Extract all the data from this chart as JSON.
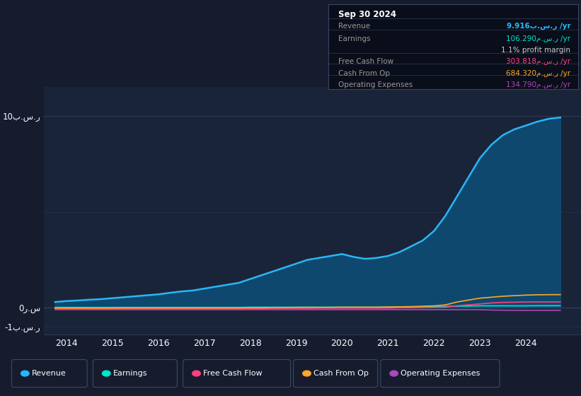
{
  "bg_color": "#161c2e",
  "plot_bg_color": "#1a2438",
  "grid_color": "#263048",
  "x_years": [
    2013.75,
    2014.0,
    2014.25,
    2014.5,
    2014.75,
    2015.0,
    2015.25,
    2015.5,
    2015.75,
    2016.0,
    2016.25,
    2016.5,
    2016.75,
    2017.0,
    2017.25,
    2017.5,
    2017.75,
    2018.0,
    2018.25,
    2018.5,
    2018.75,
    2019.0,
    2019.25,
    2019.5,
    2019.75,
    2020.0,
    2020.25,
    2020.5,
    2020.75,
    2021.0,
    2021.25,
    2021.5,
    2021.75,
    2022.0,
    2022.25,
    2022.5,
    2022.75,
    2023.0,
    2023.25,
    2023.5,
    2023.75,
    2024.0,
    2024.25,
    2024.5,
    2024.75
  ],
  "revenue": [
    0.3,
    0.35,
    0.38,
    0.42,
    0.45,
    0.5,
    0.55,
    0.6,
    0.65,
    0.7,
    0.78,
    0.85,
    0.9,
    1.0,
    1.1,
    1.2,
    1.3,
    1.5,
    1.7,
    1.9,
    2.1,
    2.3,
    2.5,
    2.6,
    2.7,
    2.8,
    2.65,
    2.55,
    2.6,
    2.7,
    2.9,
    3.2,
    3.5,
    4.0,
    4.8,
    5.8,
    6.8,
    7.8,
    8.5,
    9.0,
    9.3,
    9.5,
    9.7,
    9.85,
    9.916
  ],
  "earnings": [
    0.02,
    0.02,
    0.02,
    0.02,
    0.02,
    0.02,
    0.02,
    0.02,
    0.02,
    0.02,
    0.02,
    0.02,
    0.02,
    0.02,
    0.02,
    0.02,
    0.02,
    0.03,
    0.03,
    0.03,
    0.03,
    0.03,
    0.03,
    0.03,
    0.03,
    0.03,
    0.03,
    0.03,
    0.03,
    0.04,
    0.04,
    0.04,
    0.05,
    0.06,
    0.07,
    0.08,
    0.09,
    0.1,
    0.1,
    0.1,
    0.1,
    0.1,
    0.105,
    0.106,
    0.1063
  ],
  "free_cash_flow": [
    -0.05,
    -0.05,
    -0.05,
    -0.05,
    -0.06,
    -0.06,
    -0.06,
    -0.06,
    -0.05,
    -0.05,
    -0.05,
    -0.05,
    -0.05,
    -0.05,
    -0.05,
    -0.05,
    -0.05,
    -0.04,
    -0.04,
    -0.03,
    -0.03,
    -0.03,
    -0.03,
    -0.02,
    -0.02,
    -0.02,
    -0.02,
    -0.02,
    -0.02,
    -0.02,
    0.0,
    0.0,
    0.01,
    0.02,
    0.03,
    0.1,
    0.15,
    0.2,
    0.25,
    0.28,
    0.29,
    0.3,
    0.302,
    0.303,
    0.3038
  ],
  "cash_from_op": [
    -0.02,
    -0.02,
    -0.02,
    -0.02,
    -0.02,
    -0.02,
    -0.01,
    -0.01,
    -0.01,
    -0.01,
    -0.01,
    -0.01,
    -0.01,
    -0.01,
    -0.01,
    -0.01,
    -0.01,
    0.0,
    0.0,
    0.01,
    0.01,
    0.02,
    0.02,
    0.02,
    0.02,
    0.03,
    0.03,
    0.03,
    0.03,
    0.04,
    0.05,
    0.06,
    0.08,
    0.1,
    0.15,
    0.3,
    0.4,
    0.5,
    0.55,
    0.6,
    0.63,
    0.66,
    0.675,
    0.682,
    0.6843
  ],
  "operating_expenses": [
    -0.1,
    -0.1,
    -0.1,
    -0.1,
    -0.1,
    -0.1,
    -0.1,
    -0.1,
    -0.1,
    -0.1,
    -0.1,
    -0.1,
    -0.1,
    -0.1,
    -0.1,
    -0.1,
    -0.1,
    -0.1,
    -0.1,
    -0.1,
    -0.1,
    -0.1,
    -0.1,
    -0.1,
    -0.1,
    -0.1,
    -0.1,
    -0.1,
    -0.1,
    -0.1,
    -0.1,
    -0.1,
    -0.1,
    -0.1,
    -0.1,
    -0.1,
    -0.1,
    -0.1,
    -0.12,
    -0.13,
    -0.134,
    -0.134,
    -0.135,
    -0.1348,
    -0.1348
  ],
  "revenue_color": "#29b6f6",
  "revenue_fill_color": "#0d4f7a",
  "earnings_color": "#00e5cc",
  "free_cash_flow_color": "#ff4081",
  "cash_from_op_color": "#ffa726",
  "operating_expenses_color": "#ab47bc",
  "ylim": [
    -1.4,
    11.5
  ],
  "xticks": [
    2014,
    2015,
    2016,
    2017,
    2018,
    2019,
    2020,
    2021,
    2022,
    2023,
    2024
  ],
  "xlim": [
    2013.5,
    2025.2
  ],
  "info_box": {
    "date": "Sep 30 2024",
    "rows": [
      {
        "label": "Revenue",
        "value": "9.916ب.س.ر /yr",
        "color": "#29b6f6",
        "bold_value": true
      },
      {
        "label": "Earnings",
        "value": "106.290م.س.ر /yr",
        "color": "#00e5cc",
        "bold_value": false
      },
      {
        "label": "",
        "value": "1.1% profit margin",
        "color": "#cccccc",
        "bold_value": false
      },
      {
        "label": "Free Cash Flow",
        "value": "303.818م.س.ر /yr",
        "color": "#ff4081",
        "bold_value": false
      },
      {
        "label": "Cash From Op",
        "value": "684.320م.س.ر /yr",
        "color": "#ffa726",
        "bold_value": false
      },
      {
        "label": "Operating Expenses",
        "value": "134.790م.س.ر /yr",
        "color": "#ab47bc",
        "bold_value": false
      }
    ]
  },
  "legend_items": [
    {
      "label": "Revenue",
      "color": "#29b6f6"
    },
    {
      "label": "Earnings",
      "color": "#00e5cc"
    },
    {
      "label": "Free Cash Flow",
      "color": "#ff4081"
    },
    {
      "label": "Cash From Op",
      "color": "#ffa726"
    },
    {
      "label": "Operating Expenses",
      "color": "#ab47bc"
    }
  ]
}
